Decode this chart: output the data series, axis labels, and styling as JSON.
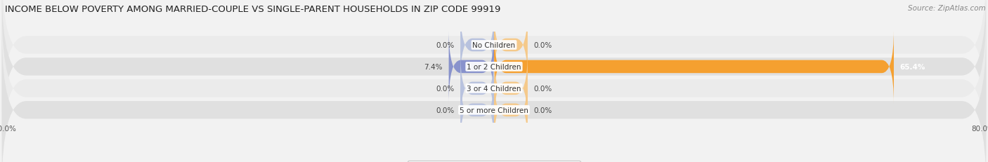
{
  "title": "INCOME BELOW POVERTY AMONG MARRIED-COUPLE VS SINGLE-PARENT HOUSEHOLDS IN ZIP CODE 99919",
  "source": "Source: ZipAtlas.com",
  "categories": [
    "No Children",
    "1 or 2 Children",
    "3 or 4 Children",
    "5 or more Children"
  ],
  "married_values": [
    0.0,
    7.4,
    0.0,
    0.0
  ],
  "single_values": [
    0.0,
    65.4,
    0.0,
    0.0
  ],
  "x_max": 80.0,
  "married_color": "#8892cc",
  "married_color_light": "#b8c2de",
  "single_color": "#f5a030",
  "single_color_light": "#f5c98a",
  "bg_color": "#f2f2f2",
  "row_colors_odd": "#ebebeb",
  "row_colors_even": "#e0e0e0",
  "title_fontsize": 9.5,
  "cat_fontsize": 7.5,
  "value_fontsize": 7.5,
  "legend_fontsize": 8,
  "source_fontsize": 7.5
}
